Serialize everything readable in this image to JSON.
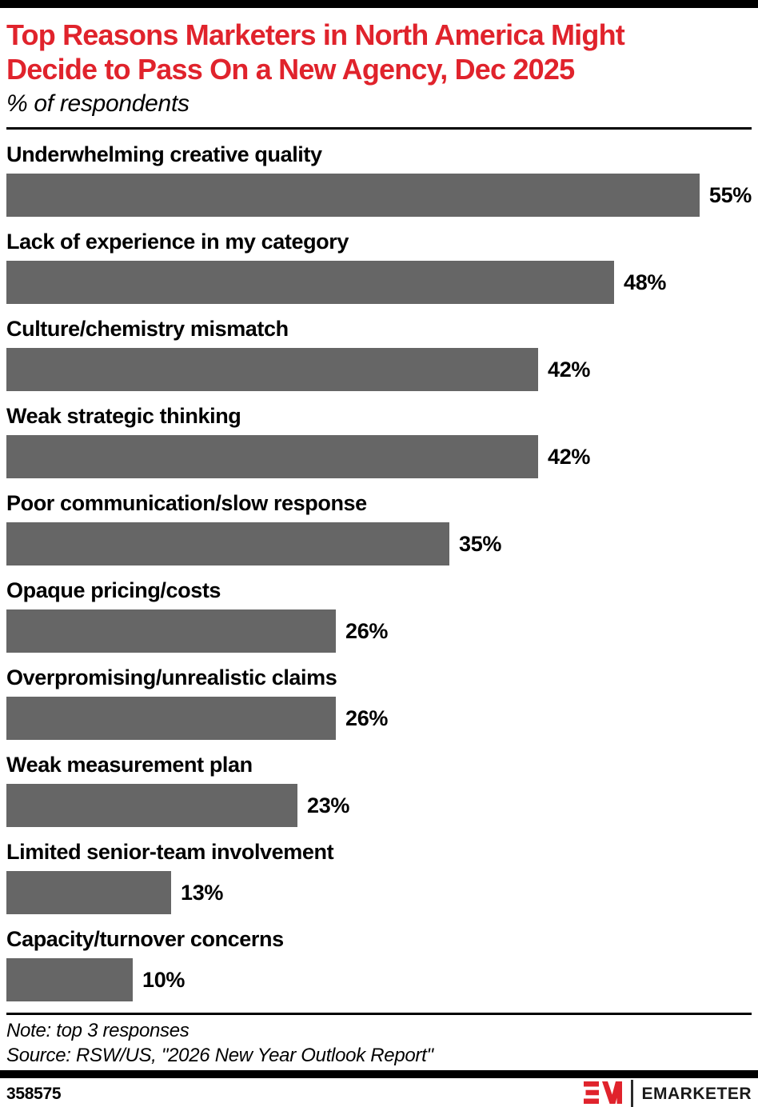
{
  "header": {
    "title_lines": [
      "Top Reasons Marketers in North America Might",
      "Decide to Pass On a New Agency, Dec 2025"
    ],
    "subtitle": "% of respondents",
    "title_color": "#E0232C"
  },
  "chart_data": {
    "type": "bar",
    "orientation": "horizontal",
    "categories": [
      "Underwhelming creative quality",
      "Lack of experience in my category",
      "Culture/chemistry mismatch",
      "Weak strategic thinking",
      "Poor communication/slow response",
      "Opaque pricing/costs",
      "Overpromising/unrealistic claims",
      "Weak measurement plan",
      "Limited senior-team involvement",
      "Capacity/turnover concerns"
    ],
    "values": [
      55,
      48,
      42,
      42,
      35,
      26,
      26,
      23,
      13,
      10
    ],
    "value_suffix": "%",
    "bar_color": "#666666",
    "xlim": [
      0,
      55
    ],
    "grid": false,
    "value_labels_position": "right-of-bar"
  },
  "footnotes": {
    "note": "Note: top 3 responses",
    "source": "Source: RSW/US, \"2026 New Year Outlook Report\""
  },
  "footer": {
    "chart_id": "358575",
    "brand_wordmark": "EMARKETER",
    "brand_color": "#E0232C"
  }
}
